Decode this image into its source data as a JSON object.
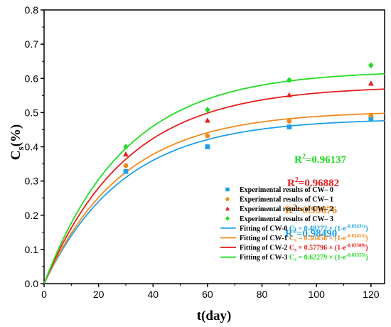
{
  "chart_data": {
    "type": "scatter",
    "title": "",
    "xlabel": "t(day)",
    "ylabel_main": "C",
    "ylabel_sub": "s",
    "ylabel_suffix": "(%)",
    "xlim": [
      0,
      125
    ],
    "ylim": [
      0,
      0.8
    ],
    "x_ticks": [
      0,
      20,
      40,
      60,
      80,
      100,
      120
    ],
    "x_tick_labels": [
      "0",
      "20",
      "40",
      "60",
      "80",
      "100",
      "120"
    ],
    "y_ticks": [
      0,
      0.1,
      0.2,
      0.3,
      0.4,
      0.5,
      0.6,
      0.7,
      0.8
    ],
    "y_tick_labels": [
      "0.0",
      "0.1",
      "0.2",
      "0.3",
      "0.4",
      "0.5",
      "0.6",
      "0.7",
      "0.8"
    ],
    "grid": false,
    "legend_position": "bottom-right",
    "series": [
      {
        "name": "Experimental results of CW– 0",
        "kind": "points",
        "marker": "square",
        "color": "#1ea0e6",
        "x": [
          30,
          60,
          90,
          120
        ],
        "y": [
          0.328,
          0.4,
          0.458,
          0.482
        ]
      },
      {
        "name": "Experimental results of CW– 1",
        "kind": "points",
        "marker": "circle",
        "color": "#f08a1e",
        "x": [
          30,
          60,
          90,
          120
        ],
        "y": [
          0.345,
          0.432,
          0.475,
          0.492
        ]
      },
      {
        "name": "Experimental results of CW– 2",
        "kind": "points",
        "marker": "triangle",
        "color": "#e61e1e",
        "x": [
          30,
          60,
          90,
          120
        ],
        "y": [
          0.378,
          0.477,
          0.551,
          0.585
        ]
      },
      {
        "name": "Experimental results of CW– 3",
        "kind": "points",
        "marker": "diamond",
        "color": "#22dd22",
        "x": [
          30,
          60,
          90,
          120
        ],
        "y": [
          0.4,
          0.508,
          0.595,
          0.638
        ]
      },
      {
        "name": "Fitting of CW-0",
        "kind": "fit",
        "color": "#1ea0e6",
        "a": 0.48272,
        "k": 0.03431,
        "eq_prefix": "C",
        "eq_sub": "s",
        "eq_mid": " = 0.48272 × (1-e",
        "eq_sup": "-0.03431t",
        "eq_end": ")",
        "r2_label": "R",
        "r2_sup": "2",
        "r2_value": "=0.98490"
      },
      {
        "name": "Fitting of CW-1",
        "kind": "fit",
        "color": "#f08a1e",
        "a": 0.50458,
        "k": 0.03455,
        "eq_prefix": "C",
        "eq_sub": "s",
        "eq_mid": " = 0.50458 × (1-e",
        "eq_sup": "-0.03455t",
        "eq_end": ")",
        "r2_label": "R",
        "r2_sup": "2",
        "r2_value": "=0.99876"
      },
      {
        "name": "Fitting of CW-2",
        "kind": "fit",
        "color": "#e61e1e",
        "a": 0.57796,
        "k": 0.03309,
        "eq_prefix": "C",
        "eq_sub": "s",
        "eq_mid": " = 0.57796 × (1-e",
        "eq_sup": "-0.03309t",
        "eq_end": ")",
        "r2_label": "R",
        "r2_sup": "2",
        "r2_value": "=0.96882"
      },
      {
        "name": "Fitting of CW-3",
        "kind": "fit",
        "color": "#22dd22",
        "a": 0.62279,
        "k": 0.03355,
        "eq_prefix": "C",
        "eq_sub": "s",
        "eq_mid": " = 0.62279 × (1-e",
        "eq_sup": "-0.03355t",
        "eq_end": ")",
        "r2_label": "R",
        "r2_sup": "2",
        "r2_value": "=0.96137"
      }
    ]
  }
}
